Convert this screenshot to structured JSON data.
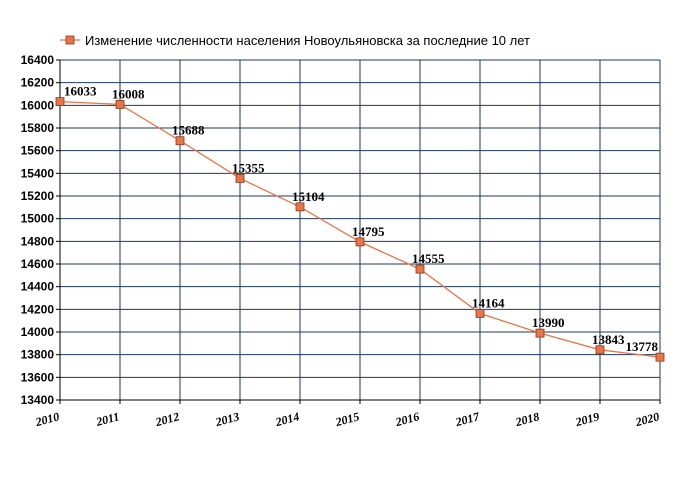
{
  "chart_data": {
    "type": "line",
    "title": "",
    "xlabel": "",
    "ylabel": "",
    "x": [
      "2010",
      "2011",
      "2012",
      "2013",
      "2014",
      "2015",
      "2016",
      "2017",
      "2018",
      "2019",
      "2020"
    ],
    "series": [
      {
        "name": "Изменение численности населения Новоульяновска за последние 10 лет",
        "values": [
          16033,
          16008,
          15688,
          15355,
          15104,
          14795,
          14555,
          14164,
          13990,
          13843,
          13778
        ],
        "labels": [
          "16033",
          "16008",
          "15688",
          "15355",
          "15104",
          "14795",
          "14555",
          "14164",
          "13990",
          "13843",
          "13778"
        ]
      }
    ],
    "ylim": [
      13400,
      16400
    ],
    "yticks": [
      "13400",
      "13600",
      "13800",
      "14000",
      "14200",
      "14400",
      "14600",
      "14800",
      "15000",
      "15200",
      "15400",
      "15600",
      "15800",
      "16000",
      "16200",
      "16400"
    ],
    "grid": true,
    "legend_position": "top",
    "colors": {
      "line": "#e8744a",
      "marker_fill": "#e8744a",
      "marker_stroke": "#8a3a1a",
      "grid": "#1f3a5a",
      "axis": "#000000"
    }
  }
}
